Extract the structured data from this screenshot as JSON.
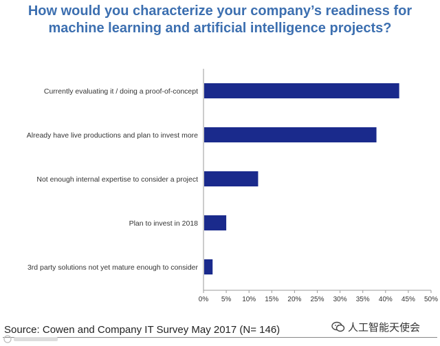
{
  "chart_data": {
    "type": "bar",
    "orientation": "horizontal",
    "title_lines": [
      "How would you characterize your company’s readiness for",
      "machine learning and artificial intelligence projects?"
    ],
    "categories": [
      "Currently evaluating it / doing a proof-of-concept",
      "Already have live productions and plan to invest more",
      "Not enough internal expertise to consider a project",
      "Plan to invest in 2018",
      "3rd party solutions not yet mature enough to consider"
    ],
    "values": [
      43,
      38,
      12,
      5,
      2
    ],
    "x_ticks": [
      "0%",
      "5%",
      "10%",
      "15%",
      "20%",
      "25%",
      "30%",
      "35%",
      "40%",
      "45%",
      "50%"
    ],
    "xlim": [
      0,
      50
    ],
    "unit": "%",
    "bar_color": "#1a2a8c",
    "grid": false
  },
  "footer": {
    "source": "Source: Cowen and Company IT Survey May 2017 (N= 146)",
    "watermark": "人工智能天使会"
  },
  "colors": {
    "title": "#3c6fb0",
    "axis": "#999999",
    "tick_text": "#333333"
  }
}
